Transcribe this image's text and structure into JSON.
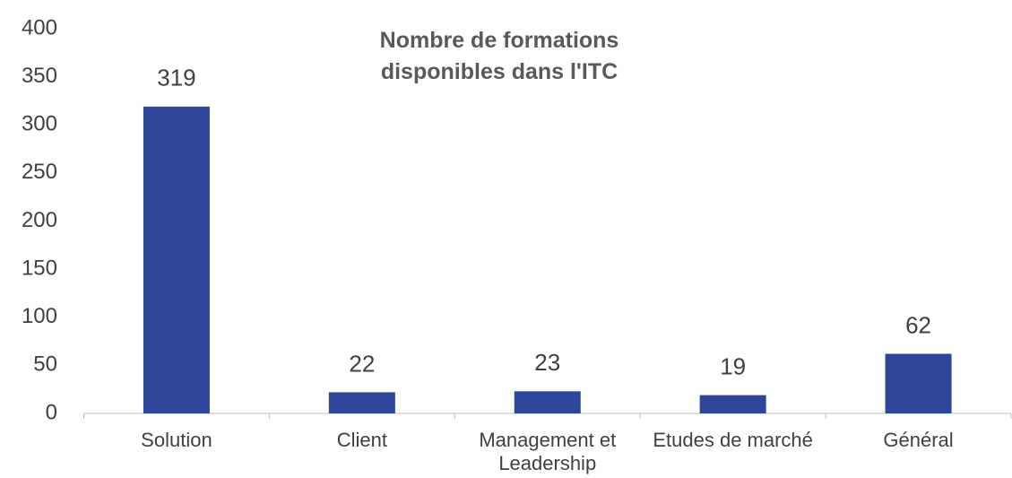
{
  "chart_data": {
    "type": "bar",
    "title": "Nombre de formations disponibles dans l'ITC",
    "categories": [
      "Solution",
      "Client",
      "Management et Leadership",
      "Etudes de marché",
      "Général"
    ],
    "values": [
      319,
      22,
      23,
      19,
      62
    ],
    "color": "#2e4699",
    "ylim": [
      0,
      400
    ],
    "yticks": [
      0,
      50,
      100,
      150,
      200,
      250,
      300,
      350,
      400
    ],
    "grid": false
  }
}
